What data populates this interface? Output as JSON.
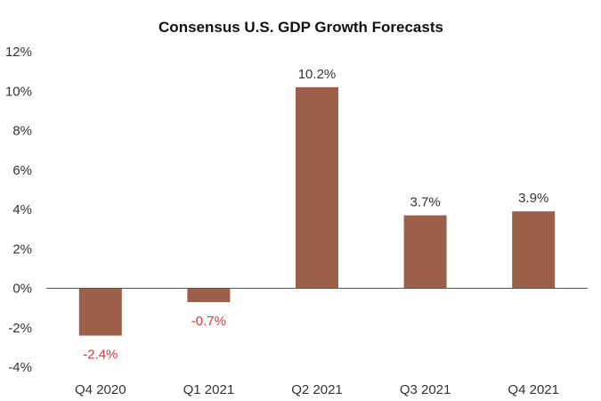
{
  "chart_data": {
    "type": "bar",
    "title": "Consensus U.S. GDP Growth Forecasts",
    "xlabel": "",
    "ylabel": "",
    "categories": [
      "Q4 2020",
      "Q1 2021",
      "Q2 2021",
      "Q3 2021",
      "Q4 2021"
    ],
    "values": [
      -2.4,
      -0.7,
      10.2,
      3.7,
      3.9
    ],
    "data_labels": [
      "-2.4%",
      "-0.7%",
      "10.2%",
      "3.7%",
      "3.9%"
    ],
    "y_ticks": [
      12,
      10,
      8,
      6,
      4,
      2,
      0,
      -2,
      -4
    ],
    "y_tick_labels": [
      "12%",
      "10%",
      "8%",
      "6%",
      "4%",
      "2%",
      "0%",
      "-2%",
      "-4%"
    ],
    "ylim": [
      -4,
      12
    ],
    "grid": false,
    "legend": "none",
    "colors": {
      "bar": "#9b5f4a",
      "negative_label": "#e8333a",
      "positive_label": "#333333",
      "axis": "#555555"
    }
  }
}
